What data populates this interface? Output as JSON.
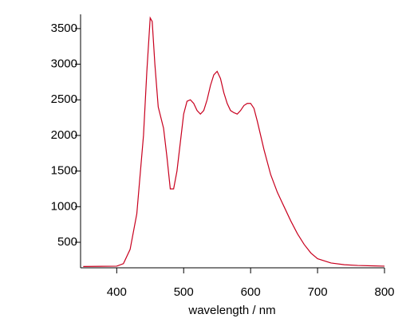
{
  "chart_data": {
    "type": "line",
    "x_label": "wavelength / nm",
    "x": [
      350,
      400,
      410,
      420,
      430,
      440,
      445,
      450,
      453,
      457,
      462,
      470,
      475,
      480,
      485,
      490,
      495,
      500,
      505,
      510,
      515,
      520,
      525,
      530,
      535,
      540,
      545,
      550,
      555,
      560,
      565,
      570,
      575,
      580,
      585,
      590,
      595,
      600,
      605,
      610,
      615,
      620,
      630,
      640,
      650,
      660,
      670,
      680,
      690,
      700,
      720,
      740,
      760,
      780,
      800
    ],
    "series": [
      {
        "color": "#c8001e",
        "values": [
          160,
          165,
          200,
          400,
          900,
          2000,
          2900,
          3650,
          3600,
          3000,
          2400,
          2100,
          1700,
          1250,
          1250,
          1500,
          1900,
          2300,
          2480,
          2500,
          2450,
          2350,
          2300,
          2350,
          2500,
          2700,
          2850,
          2900,
          2800,
          2600,
          2450,
          2350,
          2320,
          2300,
          2350,
          2420,
          2450,
          2450,
          2380,
          2200,
          2000,
          1800,
          1450,
          1200,
          1000,
          800,
          620,
          470,
          350,
          270,
          210,
          185,
          175,
          170,
          165
        ]
      }
    ],
    "xlim": [
      346,
      800
    ],
    "xticks": [
      400,
      500,
      600,
      700,
      800
    ],
    "ylim": [
      142,
      3700
    ],
    "yticks": [
      500,
      1000,
      1500,
      2000,
      2500,
      3000,
      3500
    ]
  }
}
